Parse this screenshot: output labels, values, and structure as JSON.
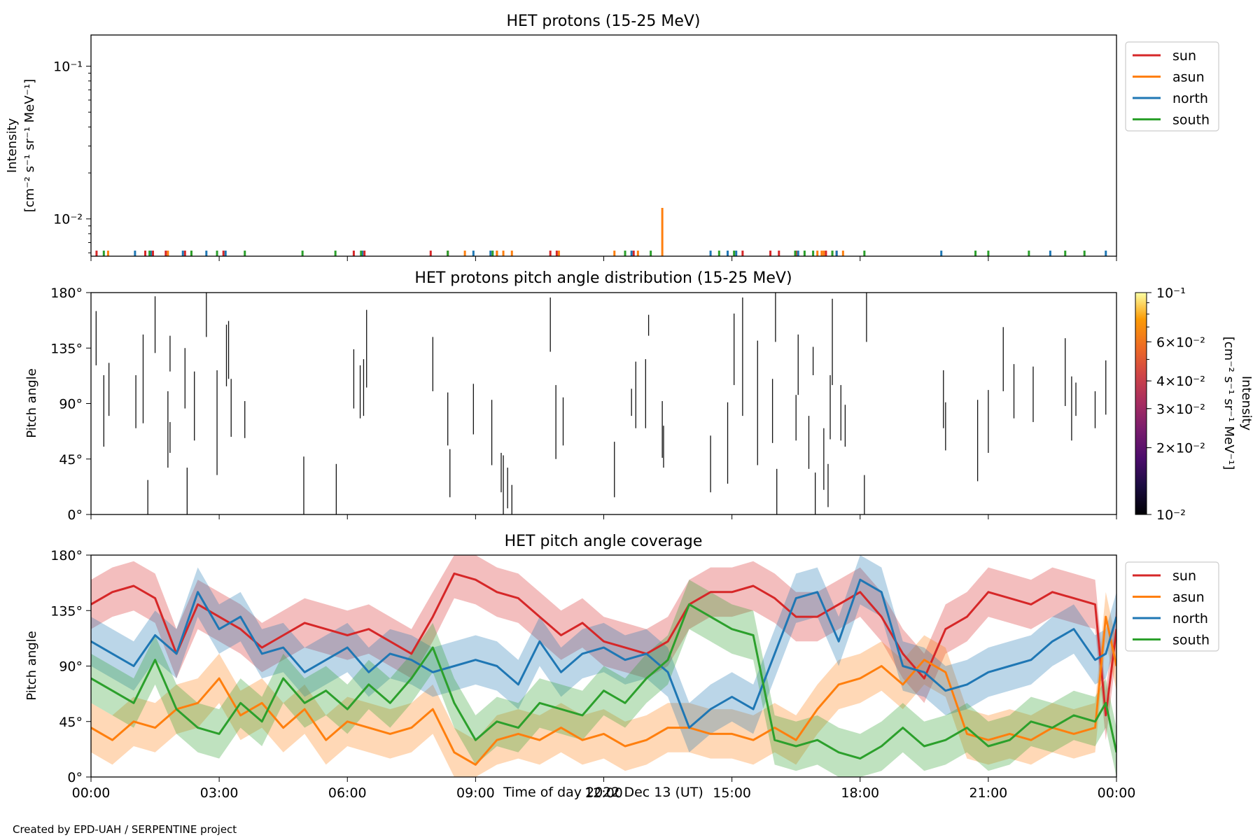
{
  "footer": {
    "credit": "Created by EPD-UAH / SERPENTINE project"
  },
  "colors": {
    "sun": "#d62728",
    "asun": "#ff7f0e",
    "north": "#1f77b4",
    "south": "#2ca02c"
  },
  "chart_data": [
    {
      "type": "line",
      "title": "HET protons (15-25 MeV)",
      "ylabel_line1": "Intensity",
      "ylabel_line2": "[cm⁻² s⁻¹ sr⁻¹ MeV⁻¹]",
      "yscale": "log",
      "ylim": [
        0.0057,
        0.16
      ],
      "yticks": [
        {
          "value": 0.1,
          "label": "10⁻¹"
        },
        {
          "value": 0.01,
          "label": "10⁻²"
        }
      ],
      "xlim_hours": [
        0,
        24
      ],
      "legend": {
        "placement": "outside-top-right",
        "entries": [
          "sun",
          "asun",
          "north",
          "south"
        ]
      },
      "baseline": 0.0057,
      "spike_value_typical": 0.0062,
      "series": [
        {
          "name": "sun",
          "color": "#d62728",
          "spike_hours": [
            0.13,
            1.27,
            1.45,
            1.75,
            2.2,
            3.1,
            6.15,
            6.4,
            7.95,
            8.35,
            9.5,
            10.75,
            10.9,
            12.7,
            15.25,
            15.9,
            16.1,
            16.5,
            17.2,
            17.45
          ]
        },
        {
          "name": "asun",
          "color": "#ff7f0e",
          "spike_hours": [
            0.4,
            1.8,
            2.35,
            8.75,
            9.5,
            9.65,
            9.85,
            10.95,
            12.25,
            12.8,
            13.37,
            17.0,
            17.1,
            17.15,
            17.35,
            17.6
          ],
          "peak": {
            "hour": 13.37,
            "value": 0.0118
          }
        },
        {
          "name": "north",
          "color": "#1f77b4",
          "spike_hours": [
            1.03,
            1.4,
            2.15,
            2.7,
            3.15,
            6.35,
            8.95,
            9.35,
            12.65,
            14.5,
            14.9,
            15.1,
            16.55,
            17.45,
            19.9,
            22.45,
            23.75
          ]
        },
        {
          "name": "south",
          "color": "#2ca02c",
          "spike_hours": [
            0.3,
            1.37,
            2.35,
            2.95,
            3.6,
            4.95,
            5.72,
            6.32,
            8.35,
            9.4,
            12.5,
            13.1,
            14.7,
            15.05,
            16.48,
            16.7,
            16.9,
            17.35,
            18.1,
            20.7,
            21.0,
            21.95,
            22.8,
            23.25
          ]
        }
      ]
    },
    {
      "type": "heatmap",
      "title": "HET protons pitch angle distribution (15-25 MeV)",
      "ylabel": "Pitch angle",
      "ylim": [
        0,
        180
      ],
      "yticks": [
        "0°",
        "45°",
        "90°",
        "135°",
        "180°"
      ],
      "xlim_hours": [
        0,
        24
      ],
      "colorbar": {
        "label_line1": "Intensity",
        "label_line2": "[cm⁻² s⁻¹ sr⁻¹ MeV⁻¹]",
        "scale": "log",
        "range": [
          0.01,
          0.1
        ],
        "ticks": [
          {
            "value": 0.1,
            "label": "10⁻¹"
          },
          {
            "value": 0.06,
            "label": "6×10⁻²"
          },
          {
            "value": 0.04,
            "label": "4×10⁻²"
          },
          {
            "value": 0.03,
            "label": "3×10⁻²"
          },
          {
            "value": 0.02,
            "label": "2×10⁻²"
          },
          {
            "value": 0.01,
            "label": "10⁻²"
          }
        ]
      },
      "marks": [
        [
          0.12,
          121,
          165
        ],
        [
          0.3,
          55,
          113
        ],
        [
          0.42,
          80,
          123
        ],
        [
          1.05,
          70,
          113
        ],
        [
          1.33,
          0,
          28
        ],
        [
          1.22,
          74,
          146
        ],
        [
          1.5,
          131,
          177
        ],
        [
          1.8,
          38,
          100
        ],
        [
          1.85,
          50,
          75
        ],
        [
          1.85,
          116,
          145
        ],
        [
          2.25,
          0,
          38
        ],
        [
          2.2,
          86,
          135
        ],
        [
          2.42,
          60,
          116
        ],
        [
          2.7,
          144,
          180
        ],
        [
          2.95,
          32,
          117
        ],
        [
          3.17,
          104,
          154
        ],
        [
          3.22,
          110,
          157
        ],
        [
          3.28,
          63,
          110
        ],
        [
          3.6,
          62,
          92
        ],
        [
          4.98,
          0,
          47
        ],
        [
          5.74,
          0,
          41
        ],
        [
          6.15,
          86,
          134
        ],
        [
          6.3,
          78,
          121
        ],
        [
          6.38,
          80,
          126
        ],
        [
          6.45,
          103,
          166
        ],
        [
          8.0,
          100,
          144
        ],
        [
          8.35,
          56,
          99
        ],
        [
          8.4,
          14,
          53
        ],
        [
          8.95,
          65,
          106
        ],
        [
          9.38,
          40,
          93
        ],
        [
          9.6,
          18,
          50
        ],
        [
          9.65,
          0,
          48
        ],
        [
          9.75,
          5,
          38
        ],
        [
          9.85,
          0,
          24
        ],
        [
          10.75,
          132,
          176
        ],
        [
          10.88,
          45,
          105
        ],
        [
          11.05,
          56,
          95
        ],
        [
          12.25,
          14,
          59
        ],
        [
          12.65,
          80,
          102
        ],
        [
          12.75,
          70,
          124
        ],
        [
          12.98,
          70,
          126
        ],
        [
          13.05,
          145,
          162
        ],
        [
          13.37,
          46,
          92
        ],
        [
          13.4,
          38,
          72
        ],
        [
          14.5,
          18,
          64
        ],
        [
          14.9,
          25,
          91
        ],
        [
          15.05,
          105,
          163
        ],
        [
          15.25,
          80,
          176
        ],
        [
          15.6,
          40,
          141
        ],
        [
          15.95,
          58,
          110
        ],
        [
          16.02,
          140,
          180
        ],
        [
          16.05,
          0,
          37
        ],
        [
          16.5,
          60,
          97
        ],
        [
          16.55,
          97,
          146
        ],
        [
          16.8,
          37,
          80
        ],
        [
          16.9,
          113,
          136
        ],
        [
          16.95,
          0,
          34
        ],
        [
          17.15,
          20,
          70
        ],
        [
          17.25,
          6,
          41
        ],
        [
          17.3,
          61,
          113
        ],
        [
          17.35,
          105,
          175
        ],
        [
          17.55,
          60,
          105
        ],
        [
          17.65,
          55,
          89
        ],
        [
          18.1,
          0,
          32
        ],
        [
          18.15,
          140,
          180
        ],
        [
          19.95,
          70,
          117
        ],
        [
          20.0,
          52,
          91
        ],
        [
          20.75,
          27,
          93
        ],
        [
          21.0,
          50,
          101
        ],
        [
          21.35,
          100,
          152
        ],
        [
          21.6,
          78,
          122
        ],
        [
          22.05,
          75,
          120
        ],
        [
          22.8,
          88,
          143
        ],
        [
          22.95,
          60,
          112
        ],
        [
          23.05,
          80,
          107
        ],
        [
          23.5,
          70,
          100
        ],
        [
          23.75,
          81,
          125
        ]
      ]
    },
    {
      "type": "line",
      "title": "HET pitch angle coverage",
      "ylabel": "Pitch angle",
      "xlabel": "Time of day 2022 Dec 13 (UT)",
      "ylim": [
        0,
        180
      ],
      "yticks": [
        "0°",
        "45°",
        "90°",
        "135°",
        "180°"
      ],
      "xlim_hours": [
        0,
        24
      ],
      "xticks": [
        "00:00",
        "03:00",
        "06:00",
        "09:00",
        "12:00",
        "15:00",
        "18:00",
        "21:00",
        "00:00"
      ],
      "shaded_band_halfwidth_deg": 20,
      "legend": {
        "placement": "outside-top-right",
        "entries": [
          "sun",
          "asun",
          "north",
          "south"
        ]
      },
      "series": [
        {
          "name": "sun",
          "color": "#d62728",
          "hours": [
            0,
            0.5,
            1,
            1.5,
            2,
            2.5,
            3,
            3.5,
            4,
            4.5,
            5,
            5.5,
            6,
            6.5,
            7,
            7.5,
            8,
            8.5,
            9,
            9.5,
            10,
            10.5,
            11,
            11.5,
            12,
            12.5,
            13,
            13.5,
            14,
            14.5,
            15,
            15.5,
            16,
            16.5,
            17,
            17.5,
            18,
            18.5,
            19,
            19.5,
            20,
            20.5,
            21,
            21.5,
            22,
            22.5,
            23,
            23.5,
            23.75,
            24
          ],
          "values": [
            140,
            150,
            155,
            145,
            100,
            140,
            130,
            120,
            105,
            115,
            125,
            120,
            115,
            120,
            110,
            100,
            130,
            165,
            160,
            150,
            145,
            130,
            115,
            125,
            110,
            105,
            100,
            110,
            140,
            150,
            150,
            155,
            145,
            130,
            130,
            140,
            150,
            130,
            100,
            80,
            120,
            130,
            150,
            145,
            140,
            150,
            145,
            140,
            50,
            120
          ]
        },
        {
          "name": "asun",
          "color": "#ff7f0e",
          "hours": [
            0,
            0.5,
            1,
            1.5,
            2,
            2.5,
            3,
            3.5,
            4,
            4.5,
            5,
            5.5,
            6,
            6.5,
            7,
            7.5,
            8,
            8.5,
            9,
            9.5,
            10,
            10.5,
            11,
            11.5,
            12,
            12.5,
            13,
            13.5,
            14,
            14.5,
            15,
            15.5,
            16,
            16.5,
            17,
            17.5,
            18,
            18.5,
            19,
            19.5,
            20,
            20.5,
            21,
            21.5,
            22,
            22.5,
            23,
            23.5,
            23.75,
            24
          ],
          "values": [
            40,
            30,
            45,
            40,
            55,
            60,
            80,
            50,
            60,
            40,
            55,
            30,
            45,
            40,
            35,
            40,
            55,
            20,
            10,
            30,
            35,
            30,
            40,
            30,
            35,
            25,
            30,
            40,
            40,
            35,
            35,
            30,
            40,
            30,
            55,
            75,
            80,
            90,
            75,
            95,
            85,
            35,
            30,
            35,
            30,
            40,
            35,
            40,
            130,
            90
          ]
        },
        {
          "name": "north",
          "color": "#1f77b4",
          "hours": [
            0,
            0.5,
            1,
            1.5,
            2,
            2.5,
            3,
            3.5,
            4,
            4.5,
            5,
            5.5,
            6,
            6.5,
            7,
            7.5,
            8,
            8.5,
            9,
            9.5,
            10,
            10.5,
            11,
            11.5,
            12,
            12.5,
            13,
            13.5,
            14,
            14.5,
            15,
            15.5,
            16,
            16.5,
            17,
            17.5,
            18,
            18.5,
            19,
            19.5,
            20,
            20.5,
            21,
            21.5,
            22,
            22.5,
            23,
            23.5,
            23.75,
            24
          ],
          "values": [
            110,
            100,
            90,
            115,
            100,
            150,
            120,
            130,
            100,
            105,
            85,
            95,
            105,
            85,
            100,
            95,
            85,
            90,
            95,
            90,
            75,
            110,
            85,
            100,
            105,
            95,
            100,
            85,
            40,
            55,
            65,
            55,
            100,
            145,
            150,
            110,
            160,
            150,
            90,
            85,
            70,
            75,
            85,
            90,
            95,
            110,
            120,
            95,
            100,
            130
          ]
        },
        {
          "name": "south",
          "color": "#2ca02c",
          "hours": [
            0,
            0.5,
            1,
            1.5,
            2,
            2.5,
            3,
            3.5,
            4,
            4.5,
            5,
            5.5,
            6,
            6.5,
            7,
            7.5,
            8,
            8.5,
            9,
            9.5,
            10,
            10.5,
            11,
            11.5,
            12,
            12.5,
            13,
            13.5,
            14,
            14.5,
            15,
            15.5,
            16,
            16.5,
            17,
            17.5,
            18,
            18.5,
            19,
            19.5,
            20,
            20.5,
            21,
            21.5,
            22,
            22.5,
            23,
            23.5,
            23.75,
            24
          ],
          "values": [
            80,
            70,
            60,
            95,
            55,
            40,
            35,
            60,
            45,
            80,
            60,
            70,
            55,
            75,
            60,
            80,
            105,
            60,
            30,
            45,
            40,
            60,
            55,
            50,
            70,
            60,
            80,
            95,
            140,
            130,
            120,
            115,
            30,
            25,
            30,
            20,
            15,
            25,
            40,
            25,
            30,
            40,
            25,
            30,
            45,
            40,
            50,
            45,
            60,
            20
          ]
        }
      ]
    }
  ]
}
